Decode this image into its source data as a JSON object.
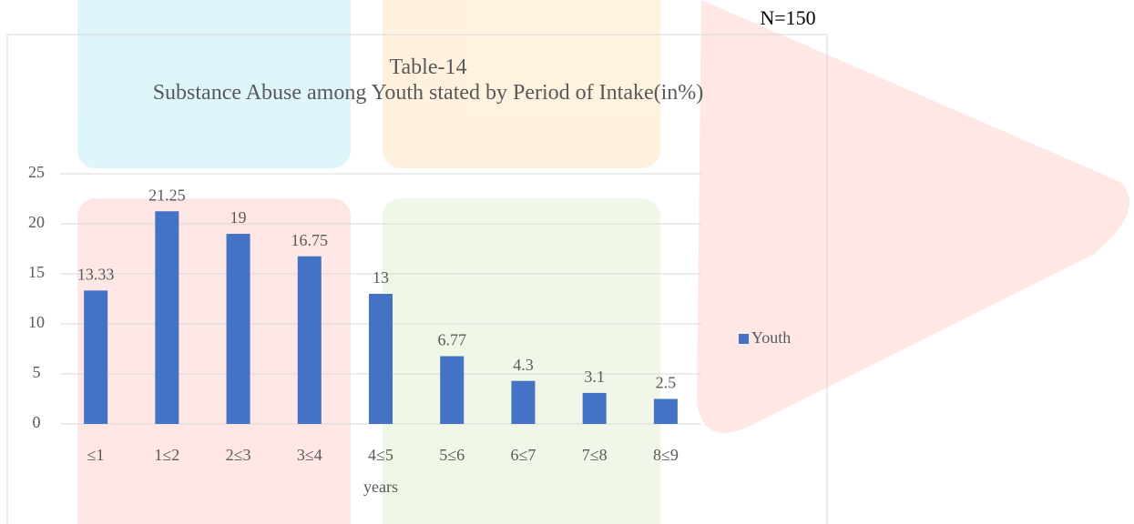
{
  "chart_data": {
    "type": "bar",
    "annotation": "N=150",
    "title": "Table-14",
    "subtitle": "Substance Abuse among Youth stated by Period of Intake(in%)",
    "categories": [
      "≤1",
      "1≤2",
      "2≤3",
      "3≤4",
      "4≤5",
      "5≤6",
      "6≤7",
      "7≤8",
      "8≤9"
    ],
    "series": [
      {
        "name": "Youth",
        "color": "#4472c4",
        "values": [
          13.33,
          21.25,
          19,
          16.75,
          13,
          6.77,
          4.3,
          3.1,
          2.5
        ]
      }
    ],
    "x_label": "years",
    "ylim": [
      0,
      25
    ],
    "yticks": [
      0,
      5,
      10,
      15,
      20,
      25
    ],
    "grid": true,
    "legend": "right"
  }
}
